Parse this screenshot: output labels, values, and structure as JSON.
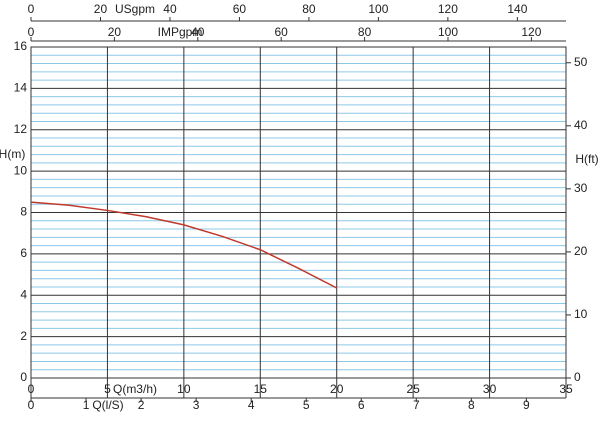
{
  "chart_data": {
    "type": "line",
    "xlabel": "Q(m3/h)",
    "ylabel": "H(m)",
    "y2label": "H(ft)",
    "x": [
      0,
      2.5,
      5,
      7.5,
      10,
      12.5,
      15,
      17.5,
      20
    ],
    "series": [
      {
        "name": "H",
        "color": "#c0392b",
        "values": [
          8.5,
          8.35,
          8.1,
          7.8,
          7.4,
          6.85,
          6.2,
          5.3,
          4.35
        ]
      }
    ],
    "xlim": [
      0,
      35
    ],
    "xticks": [
      0,
      5,
      10,
      15,
      20,
      25,
      30,
      35
    ],
    "ylim": [
      0,
      16
    ],
    "yticks": [
      0,
      2,
      4,
      6,
      8,
      10,
      12,
      14,
      16
    ],
    "y2lim": [
      0,
      52.5
    ],
    "y2ticks": [
      0,
      10,
      20,
      30,
      40,
      50
    ],
    "grid": true,
    "minor_grid_color": "#8ec8e8",
    "top_axes": [
      {
        "label": "USgpm",
        "lim": [
          0,
          154
        ],
        "ticks": [
          0,
          20,
          40,
          60,
          80,
          100,
          120,
          140
        ]
      },
      {
        "label": "IMPgpm",
        "lim": [
          0,
          128.3
        ],
        "ticks": [
          0,
          20,
          40,
          60,
          80,
          100,
          120
        ]
      }
    ],
    "bottom_axis2": {
      "label": "Q(l/S)",
      "lim": [
        0,
        9.72
      ],
      "ticks": [
        0,
        1,
        2,
        3,
        4,
        5,
        6,
        7,
        8,
        9
      ]
    }
  }
}
